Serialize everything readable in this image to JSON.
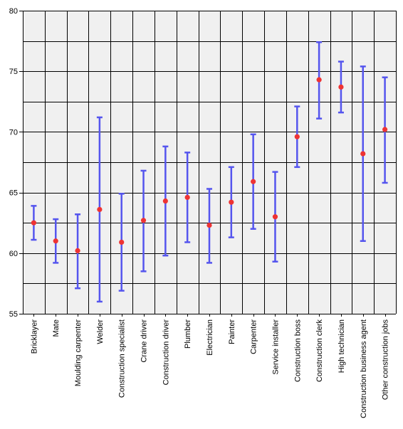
{
  "chart_data": {
    "type": "scatter",
    "title": "",
    "xlabel": "",
    "ylabel": "",
    "ylim": [
      55,
      80
    ],
    "yticks": [
      55,
      60,
      65,
      70,
      75,
      80
    ],
    "grid": true,
    "legend": "none",
    "colors": {
      "background": "#f0f0f0",
      "grid": "#000000",
      "errorbar": "#5555ee",
      "point": "#ee3333"
    },
    "categories": [
      "Bricklayer",
      "Mate",
      "Moulding carpenter",
      "Welder",
      "Construction specialist",
      "Crane driver",
      "Construction driver",
      "Plumber",
      "Electrician",
      "Painter",
      "Carpenter",
      "Service installer",
      "Construction boss",
      "Construction clerk",
      "High technician",
      "Construction business agent",
      "Other construction jobs"
    ],
    "mean": [
      62.5,
      61.0,
      60.2,
      63.6,
      60.9,
      62.7,
      64.3,
      64.6,
      62.3,
      64.2,
      65.9,
      63.0,
      69.6,
      74.3,
      73.7,
      68.2,
      70.2
    ],
    "lower": [
      61.1,
      59.2,
      57.1,
      56.0,
      56.9,
      58.5,
      59.8,
      60.9,
      59.2,
      61.3,
      62.0,
      59.3,
      67.1,
      71.1,
      71.6,
      61.0,
      65.8
    ],
    "upper": [
      63.9,
      62.8,
      63.2,
      71.2,
      64.9,
      66.8,
      68.8,
      68.3,
      65.3,
      67.1,
      69.8,
      66.7,
      72.1,
      77.4,
      75.8,
      75.4,
      74.5
    ]
  }
}
